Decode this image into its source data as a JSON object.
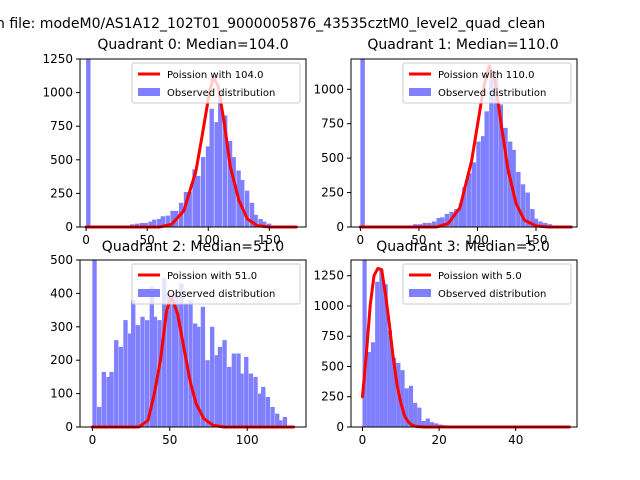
{
  "figure": {
    "suptitle": "n file: modeM0/AS1A12_102T01_9000005876_43535cztM0_level2_quad_clean"
  },
  "chart_data": [
    {
      "type": "bar",
      "title": "Quadrant 0: Median=104.0",
      "xlim": [
        -5,
        180
      ],
      "ylim": [
        0,
        1250
      ],
      "xticks": [
        0,
        50,
        100,
        150
      ],
      "yticks": [
        0,
        250,
        500,
        750,
        1000,
        1250
      ],
      "legend": [
        "Poission with 104.0",
        "Observed distribution"
      ],
      "legend_loc": "upper right",
      "hist_bin_width": 3.6,
      "hist": [
        [
          0,
          1250
        ],
        [
          36,
          20
        ],
        [
          40,
          25
        ],
        [
          44,
          30
        ],
        [
          47,
          30
        ],
        [
          51,
          40
        ],
        [
          54,
          55
        ],
        [
          58,
          60
        ],
        [
          61,
          80
        ],
        [
          65,
          85
        ],
        [
          69,
          120
        ],
        [
          72,
          120
        ],
        [
          76,
          180
        ],
        [
          80,
          260
        ],
        [
          83,
          260
        ],
        [
          87,
          430
        ],
        [
          90,
          380
        ],
        [
          94,
          520
        ],
        [
          98,
          600
        ],
        [
          101,
          880
        ],
        [
          105,
          780
        ],
        [
          108,
          1000
        ],
        [
          112,
          830
        ],
        [
          116,
          640
        ],
        [
          119,
          520
        ],
        [
          123,
          420
        ],
        [
          126,
          350
        ],
        [
          130,
          270
        ],
        [
          134,
          180
        ],
        [
          137,
          90
        ],
        [
          141,
          60
        ],
        [
          144,
          40
        ],
        [
          148,
          25
        ]
      ],
      "poisson": [
        [
          0,
          0
        ],
        [
          60,
          0
        ],
        [
          70,
          20
        ],
        [
          80,
          120
        ],
        [
          90,
          420
        ],
        [
          95,
          680
        ],
        [
          100,
          950
        ],
        [
          104,
          1120
        ],
        [
          108,
          1050
        ],
        [
          113,
          780
        ],
        [
          118,
          450
        ],
        [
          125,
          200
        ],
        [
          132,
          60
        ],
        [
          140,
          10
        ],
        [
          150,
          0
        ],
        [
          172,
          0
        ]
      ]
    },
    {
      "type": "bar",
      "title": "Quadrant 1: Median=110.0",
      "xlim": [
        -8,
        185
      ],
      "ylim": [
        0,
        1220
      ],
      "xticks": [
        0,
        50,
        100,
        150
      ],
      "yticks": [
        0,
        250,
        500,
        750,
        1000
      ],
      "legend": [
        "Poission with 110.0",
        "Observed distribution"
      ],
      "legend_loc": "upper right",
      "hist_bin_width": 3.8,
      "hist": [
        [
          0,
          1220
        ],
        [
          45,
          20
        ],
        [
          49,
          20
        ],
        [
          53,
          30
        ],
        [
          57,
          30
        ],
        [
          61,
          40
        ],
        [
          65,
          65
        ],
        [
          68,
          70
        ],
        [
          72,
          95
        ],
        [
          76,
          110
        ],
        [
          80,
          130
        ],
        [
          84,
          170
        ],
        [
          87,
          290
        ],
        [
          91,
          390
        ],
        [
          95,
          470
        ],
        [
          99,
          620
        ],
        [
          103,
          660
        ],
        [
          106,
          840
        ],
        [
          110,
          1080
        ],
        [
          114,
          1130
        ],
        [
          118,
          890
        ],
        [
          122,
          720
        ],
        [
          126,
          620
        ],
        [
          129,
          560
        ],
        [
          133,
          400
        ],
        [
          137,
          310
        ],
        [
          141,
          250
        ],
        [
          145,
          130
        ],
        [
          148,
          60
        ],
        [
          152,
          40
        ],
        [
          156,
          30
        ],
        [
          160,
          20
        ]
      ],
      "poisson": [
        [
          0,
          0
        ],
        [
          65,
          0
        ],
        [
          75,
          25
        ],
        [
          85,
          140
        ],
        [
          95,
          480
        ],
        [
          100,
          740
        ],
        [
          105,
          1000
        ],
        [
          110,
          1170
        ],
        [
          115,
          1060
        ],
        [
          120,
          760
        ],
        [
          126,
          420
        ],
        [
          133,
          170
        ],
        [
          140,
          50
        ],
        [
          150,
          8
        ],
        [
          160,
          0
        ],
        [
          180,
          0
        ]
      ]
    },
    {
      "type": "bar",
      "title": "Quadrant 2: Median=51.0",
      "xlim": [
        -8,
        138
      ],
      "ylim": [
        0,
        500
      ],
      "xticks": [
        0,
        50,
        100
      ],
      "yticks": [
        0,
        100,
        200,
        300,
        400,
        500
      ],
      "legend": [
        "Poission with 51.0",
        "Observed distribution"
      ],
      "legend_loc": "upper right",
      "hist_bin_width": 2.8,
      "hist": [
        [
          0,
          500
        ],
        [
          3,
          60
        ],
        [
          6,
          165
        ],
        [
          9,
          150
        ],
        [
          11,
          165
        ],
        [
          14,
          260
        ],
        [
          17,
          240
        ],
        [
          20,
          320
        ],
        [
          23,
          280
        ],
        [
          25,
          380
        ],
        [
          28,
          305
        ],
        [
          31,
          330
        ],
        [
          34,
          320
        ],
        [
          37,
          420
        ],
        [
          39,
          330
        ],
        [
          42,
          320
        ],
        [
          45,
          445
        ],
        [
          48,
          400
        ],
        [
          51,
          400
        ],
        [
          53,
          390
        ],
        [
          56,
          430
        ],
        [
          59,
          370
        ],
        [
          62,
          380
        ],
        [
          65,
          310
        ],
        [
          67,
          300
        ],
        [
          70,
          360
        ],
        [
          73,
          200
        ],
        [
          76,
          300
        ],
        [
          79,
          215
        ],
        [
          81,
          240
        ],
        [
          84,
          260
        ],
        [
          87,
          180
        ],
        [
          90,
          220
        ],
        [
          93,
          220
        ],
        [
          95,
          160
        ],
        [
          98,
          210
        ],
        [
          101,
          160
        ],
        [
          104,
          150
        ],
        [
          107,
          100
        ],
        [
          109,
          120
        ],
        [
          112,
          90
        ],
        [
          115,
          60
        ],
        [
          118,
          40
        ],
        [
          120,
          20
        ],
        [
          123,
          30
        ]
      ],
      "poisson": [
        [
          0,
          0
        ],
        [
          30,
          0
        ],
        [
          36,
          20
        ],
        [
          40,
          100
        ],
        [
          44,
          200
        ],
        [
          48,
          350
        ],
        [
          51,
          390
        ],
        [
          55,
          340
        ],
        [
          59,
          240
        ],
        [
          63,
          140
        ],
        [
          67,
          70
        ],
        [
          72,
          25
        ],
        [
          78,
          5
        ],
        [
          85,
          0
        ],
        [
          130,
          0
        ]
      ]
    },
    {
      "type": "bar",
      "title": "Quadrant 3: Median=5.0",
      "xlim": [
        -3,
        56
      ],
      "ylim": [
        0,
        1380
      ],
      "xticks": [
        0,
        20,
        40
      ],
      "yticks": [
        0,
        250,
        500,
        750,
        1000,
        1250
      ],
      "legend": [
        "Poission with 5.0",
        "Observed distribution"
      ],
      "legend_loc": "upper right",
      "hist_bin_width": 1.1,
      "hist": [
        [
          0,
          1380
        ],
        [
          1.1,
          620
        ],
        [
          2.2,
          700
        ],
        [
          3.3,
          1200
        ],
        [
          4.4,
          1300
        ],
        [
          5.5,
          1180
        ],
        [
          6.6,
          800
        ],
        [
          7.7,
          570
        ],
        [
          8.8,
          530
        ],
        [
          9.9,
          470
        ],
        [
          11,
          320
        ],
        [
          12.1,
          340
        ],
        [
          13.2,
          200
        ],
        [
          14.3,
          160
        ],
        [
          15.4,
          50
        ],
        [
          16.5,
          70
        ],
        [
          17.6,
          40
        ],
        [
          18.7,
          30
        ],
        [
          19.8,
          20
        ],
        [
          20.9,
          15
        ],
        [
          22,
          10
        ],
        [
          23.1,
          10
        ],
        [
          24.2,
          8
        ],
        [
          25.3,
          6
        ],
        [
          26.4,
          5
        ],
        [
          27.5,
          5
        ],
        [
          28.6,
          4
        ],
        [
          29.7,
          3
        ],
        [
          30.8,
          3
        ],
        [
          31.9,
          3
        ],
        [
          33,
          2
        ],
        [
          34.1,
          2
        ],
        [
          35.2,
          2
        ],
        [
          36.3,
          2
        ],
        [
          37.4,
          1
        ],
        [
          38.5,
          1
        ],
        [
          39.6,
          1
        ],
        [
          40.7,
          1
        ],
        [
          41.8,
          1
        ],
        [
          42.9,
          1
        ],
        [
          44,
          1
        ],
        [
          45.1,
          1
        ],
        [
          46.2,
          1
        ],
        [
          47.3,
          1
        ],
        [
          48.4,
          1
        ],
        [
          49.5,
          1
        ],
        [
          50.6,
          1
        ],
        [
          51.7,
          1
        ]
      ],
      "poisson": [
        [
          0,
          250
        ],
        [
          1,
          600
        ],
        [
          2,
          1000
        ],
        [
          3,
          1250
        ],
        [
          4,
          1310
        ],
        [
          5,
          1300
        ],
        [
          6,
          1100
        ],
        [
          7,
          850
        ],
        [
          8,
          580
        ],
        [
          9,
          350
        ],
        [
          10,
          200
        ],
        [
          11,
          90
        ],
        [
          12,
          40
        ],
        [
          13,
          15
        ],
        [
          14,
          5
        ],
        [
          16,
          0
        ],
        [
          54,
          0
        ]
      ]
    }
  ],
  "colors": {
    "hist_fill": "#7f7fff",
    "poisson_line": "#ff0000",
    "axes": "#000000",
    "legend_border": "#cccccc"
  }
}
